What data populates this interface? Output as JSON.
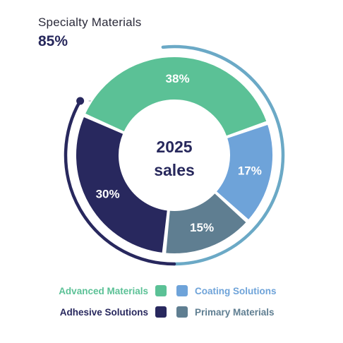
{
  "annotation": {
    "label": "Specialty Materials",
    "value": "85%",
    "share": 85
  },
  "chart_data": {
    "type": "pie",
    "style": "donut",
    "center_label": [
      "2025",
      "sales"
    ],
    "slices": [
      {
        "name": "Advanced Materials",
        "value": 38,
        "label": "38%",
        "color": "#5bc196"
      },
      {
        "name": "Coating Solutions",
        "value": 17,
        "label": "17%",
        "color": "#6ea3d9"
      },
      {
        "name": "Primary Materials",
        "value": 15,
        "label": "15%",
        "color": "#5f7e91"
      },
      {
        "name": "Adhesive Solutions",
        "value": 30,
        "label": "30%",
        "color": "#28285e"
      }
    ],
    "legend_placement": "bottom"
  },
  "legend": {
    "rows": [
      {
        "left": "Advanced Materials",
        "left_color": "#5bc196",
        "right": "Coating Solutions",
        "right_color": "#6ea3d9"
      },
      {
        "left": "Adhesive Solutions",
        "left_color": "#28285e",
        "right": "Primary Materials",
        "right_color": "#5f7e91"
      }
    ]
  },
  "colors": {
    "text_dark": "#27285c",
    "accent_arc": "#6ba9c6"
  }
}
